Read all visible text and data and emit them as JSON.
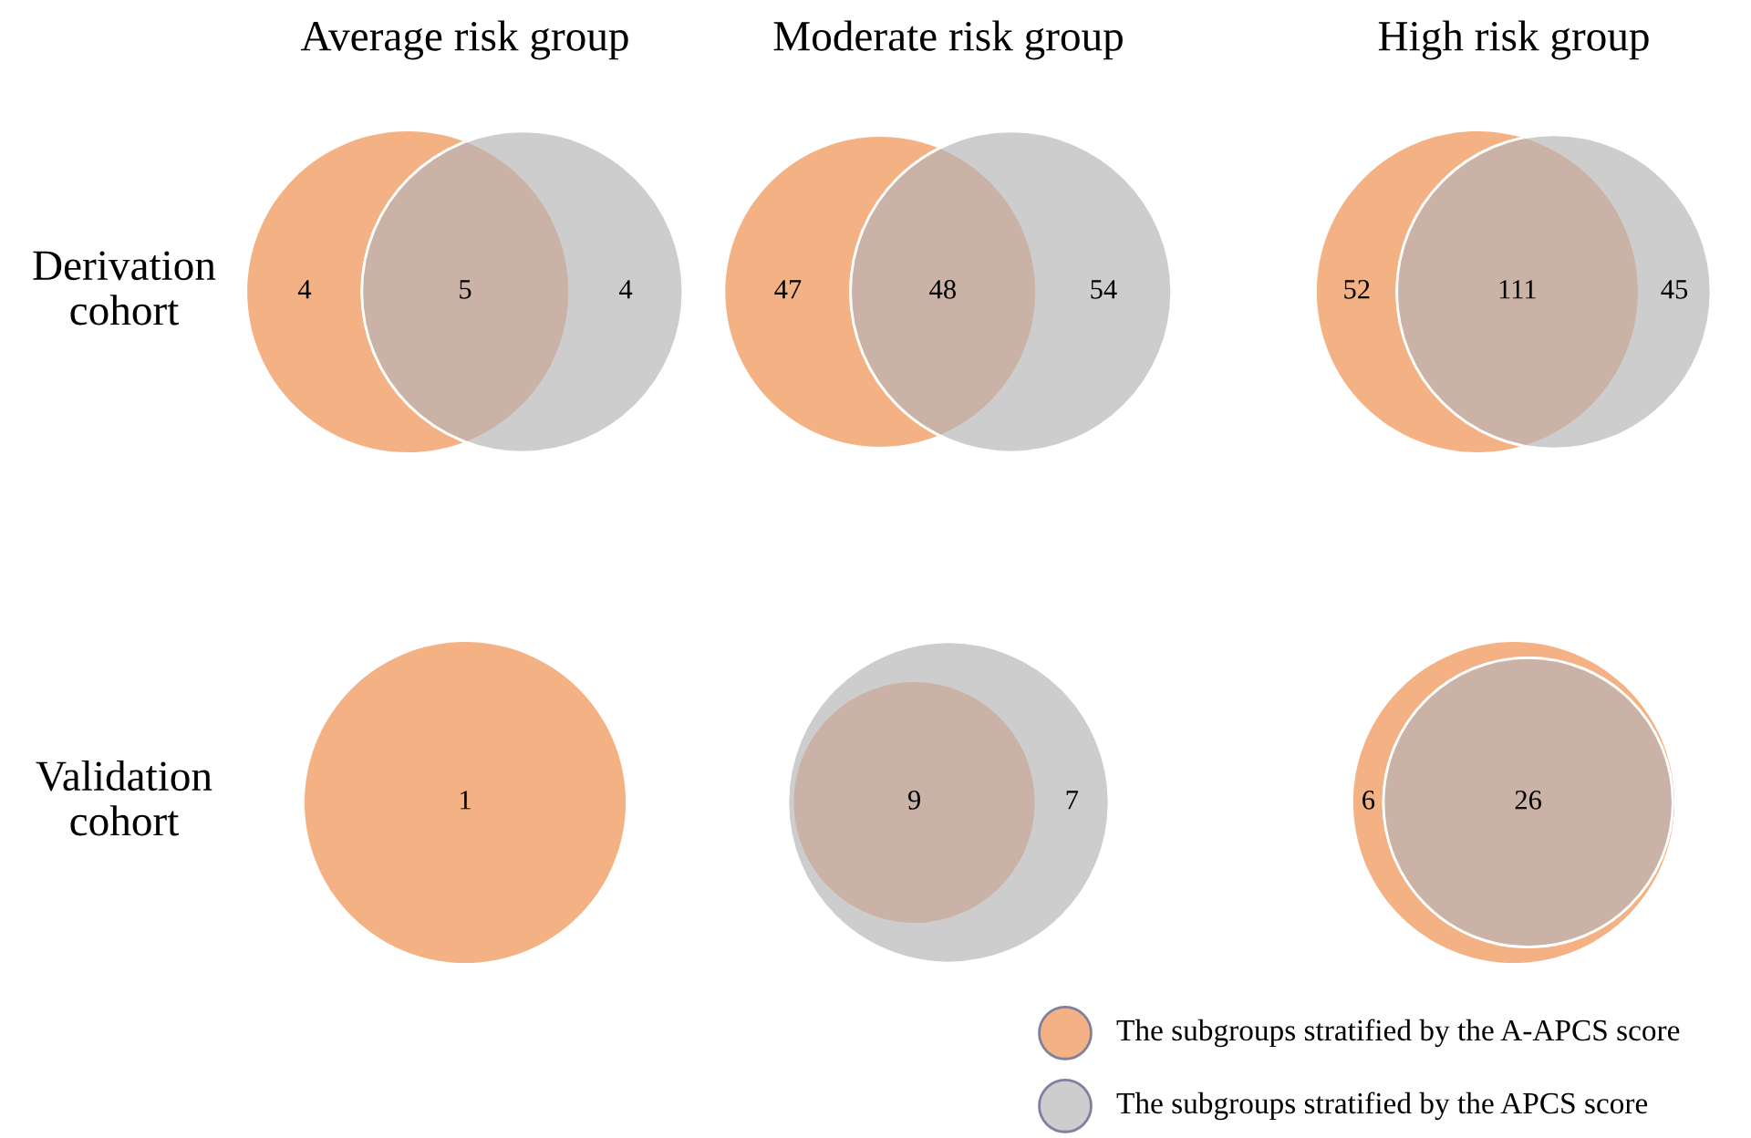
{
  "chart_data": [
    {
      "type": "other",
      "title": "Average risk group",
      "ylabel": "Derivation cohort",
      "categories": [
        null,
        null,
        null
      ],
      "values": [
        4,
        5,
        4
      ],
      "colors": [
        "#f4b183",
        "#cbb2a6",
        "#cdcdcd"
      ],
      "data_labels": true
    },
    {
      "type": "other",
      "title": "Moderate risk group",
      "categories": [
        null,
        null,
        null
      ],
      "values": [
        47,
        48,
        54
      ],
      "colors": [
        "#f4b183",
        "#cbb2a6",
        "#cdcdcd"
      ],
      "data_labels": true
    },
    {
      "type": "other",
      "title": "High risk group",
      "categories": [
        null,
        null,
        null
      ],
      "values": [
        52,
        111,
        45
      ],
      "colors": [
        "#f4b183",
        "#cbb2a6",
        "#cdcdcd"
      ],
      "data_labels": true
    },
    {
      "type": "other",
      "ylabel": "Validation cohort",
      "categories": [
        null,
        null,
        null
      ],
      "values": [
        1,
        null,
        null
      ],
      "colors": [
        "#f4b183",
        null,
        null
      ],
      "data_labels": true
    },
    {
      "type": "other",
      "categories": [
        null,
        null,
        null
      ],
      "values": [
        null,
        9,
        7
      ],
      "colors": [
        null,
        "#cbb2a6",
        "#cdcdcd"
      ],
      "data_labels": true
    },
    {
      "type": "other",
      "categories": [
        null,
        null,
        null
      ],
      "values": [
        6,
        26,
        null
      ],
      "colors": [
        "#f4b183",
        "#cbb2a6",
        null
      ],
      "data_labels": true
    },
    {
      "type": "other",
      "categories": [
        "The subgroups stratified by the A-APCS score",
        "The subgroups stratified by the APCS score"
      ],
      "colors": [
        "#f4b183",
        "#cdcdcd"
      ]
    }
  ]
}
